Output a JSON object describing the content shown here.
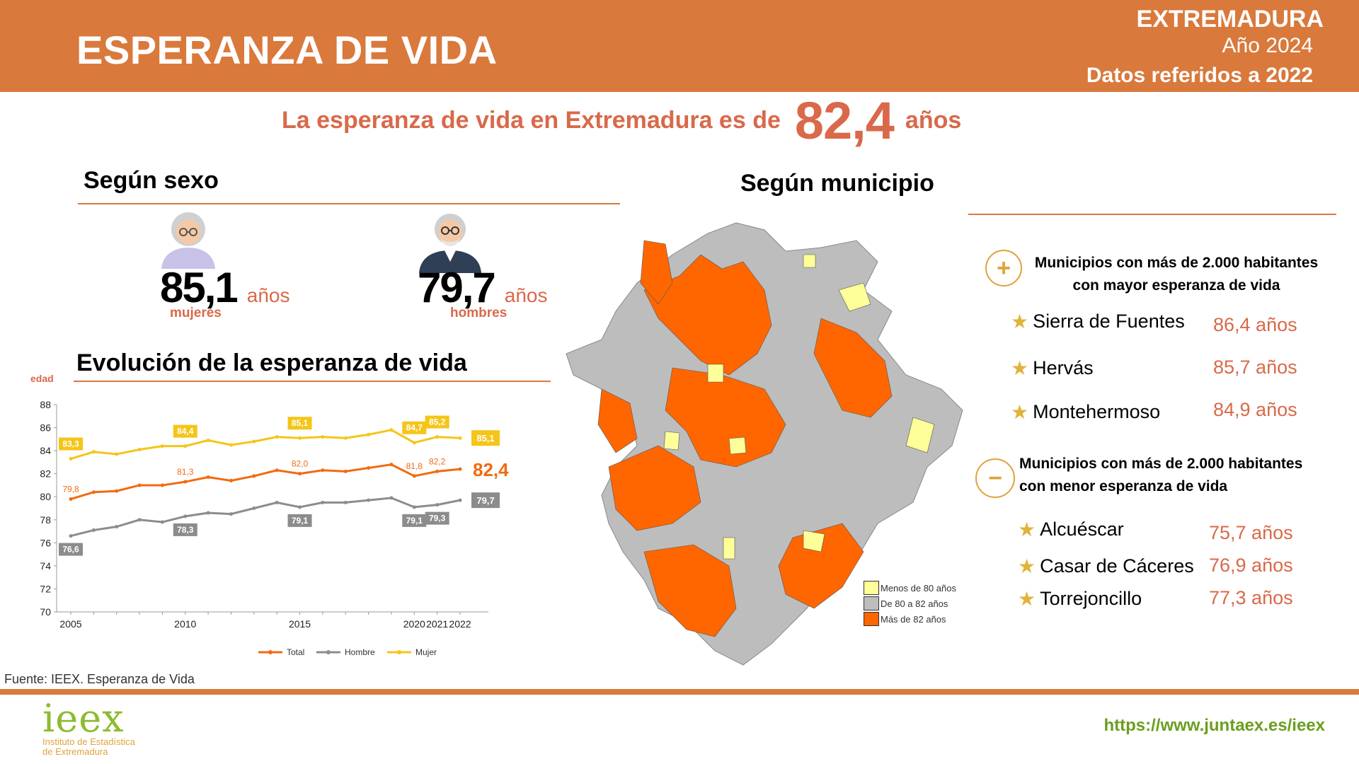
{
  "header": {
    "title": "ESPERANZA DE VIDA",
    "region": "EXTREMADURA",
    "year": "Año 2024",
    "reference": "Datos referidos a 2022"
  },
  "headline": {
    "prefix": "La esperanza de vida en Extremadura es de",
    "value": "82,4",
    "suffix": "años"
  },
  "sex_section": {
    "title": "Según  sexo",
    "women": {
      "value": "85,1",
      "unit": "años",
      "label": "mujeres"
    },
    "men": {
      "value": "79,7",
      "unit": "años",
      "label": "hombres"
    }
  },
  "evolution_title": "Evolución de la esperanza de vida",
  "chart_data": {
    "type": "line",
    "ylabel": "edad",
    "ylim": [
      70,
      88
    ],
    "yticks": [
      "70",
      "72",
      "74",
      "76",
      "78",
      "80",
      "82",
      "84",
      "86",
      "88"
    ],
    "x": [
      2005,
      2006,
      2007,
      2008,
      2009,
      2010,
      2011,
      2012,
      2013,
      2014,
      2015,
      2016,
      2017,
      2018,
      2019,
      2020,
      2021,
      2022
    ],
    "xtick_labels": [
      {
        "x": 2005,
        "label": "2005"
      },
      {
        "x": 2010,
        "label": "2010"
      },
      {
        "x": 2015,
        "label": "2015"
      },
      {
        "x": 2020,
        "label": "2020"
      },
      {
        "x": 2021,
        "label": "2021"
      },
      {
        "x": 2022,
        "label": "2022"
      }
    ],
    "series": [
      {
        "name": "Total",
        "color": "#f26a10",
        "values": [
          79.8,
          80.4,
          80.5,
          81.0,
          81.0,
          81.3,
          81.7,
          81.4,
          81.8,
          82.3,
          82.0,
          82.3,
          82.2,
          82.5,
          82.8,
          81.8,
          82.2,
          82.4
        ],
        "labels": [
          {
            "x": 2005,
            "text": "79,8"
          },
          {
            "x": 2010,
            "text": "81,3"
          },
          {
            "x": 2015,
            "text": "82,0"
          },
          {
            "x": 2020,
            "text": "81,8"
          },
          {
            "x": 2021,
            "text": "82,2"
          }
        ],
        "end_label": "82,4"
      },
      {
        "name": "Hombre",
        "color": "#8c8c8c",
        "values": [
          76.6,
          77.1,
          77.4,
          78.0,
          77.8,
          78.3,
          78.6,
          78.5,
          79.0,
          79.5,
          79.1,
          79.5,
          79.5,
          79.7,
          79.9,
          79.1,
          79.3,
          79.7
        ],
        "labels": [
          {
            "x": 2005,
            "text": "76,6"
          },
          {
            "x": 2010,
            "text": "78,3"
          },
          {
            "x": 2015,
            "text": "79,1"
          },
          {
            "x": 2020,
            "text": "79,1"
          },
          {
            "x": 2021,
            "text": "79,3"
          }
        ],
        "end_label": "79,7"
      },
      {
        "name": "Mujer",
        "color": "#f5c518",
        "values": [
          83.3,
          83.9,
          83.7,
          84.1,
          84.4,
          84.4,
          84.9,
          84.5,
          84.8,
          85.2,
          85.1,
          85.2,
          85.1,
          85.4,
          85.8,
          84.7,
          85.2,
          85.1
        ],
        "labels": [
          {
            "x": 2005,
            "text": "83,3"
          },
          {
            "x": 2010,
            "text": "84,4"
          },
          {
            "x": 2015,
            "text": "85,1"
          },
          {
            "x": 2020,
            "text": "84,7"
          },
          {
            "x": 2021,
            "text": "85,2"
          }
        ],
        "end_label": "85,1"
      }
    ],
    "legend": "bottom-center"
  },
  "municipality_section": {
    "title": "Según municipio",
    "legend": [
      {
        "label": "Menos de 80 años",
        "color": "#ffff99"
      },
      {
        "label": "De 80 a 82 años",
        "color": "#bdbdbd"
      },
      {
        "label": "Más de 82 años",
        "color": "#ff6600"
      }
    ],
    "higher": {
      "icon": "plus-circle-icon",
      "line1": "Municipios con más de 2.000 habitantes",
      "line2": "con mayor esperanza de vida",
      "items": [
        {
          "name": "Sierra de Fuentes",
          "value": "86,4 años"
        },
        {
          "name": "Hervás",
          "value": "85,7 años"
        },
        {
          "name": "Montehermoso",
          "value": "84,9 años"
        }
      ]
    },
    "lower": {
      "icon": "minus-circle-icon",
      "line1": "Municipios con más de 2.000 habitantes",
      "line2": "con menor esperanza de vida",
      "items": [
        {
          "name": "Alcuéscar",
          "value": "75,7 años"
        },
        {
          "name": "Casar de Cáceres",
          "value": "76,9 años"
        },
        {
          "name": "Torrejoncillo",
          "value": "77,3 años"
        }
      ]
    }
  },
  "footer": {
    "source": "Fuente: IEEX. Esperanza de Vida",
    "url": "https://www.juntaex.es/ieex",
    "logo_word": "ieex",
    "logo_line1": "Instituto de Estadística",
    "logo_line2": "de Extremadura"
  },
  "colors": {
    "accent": "#d9793c",
    "headline": "#d9694a",
    "url": "#6b9e1f"
  }
}
